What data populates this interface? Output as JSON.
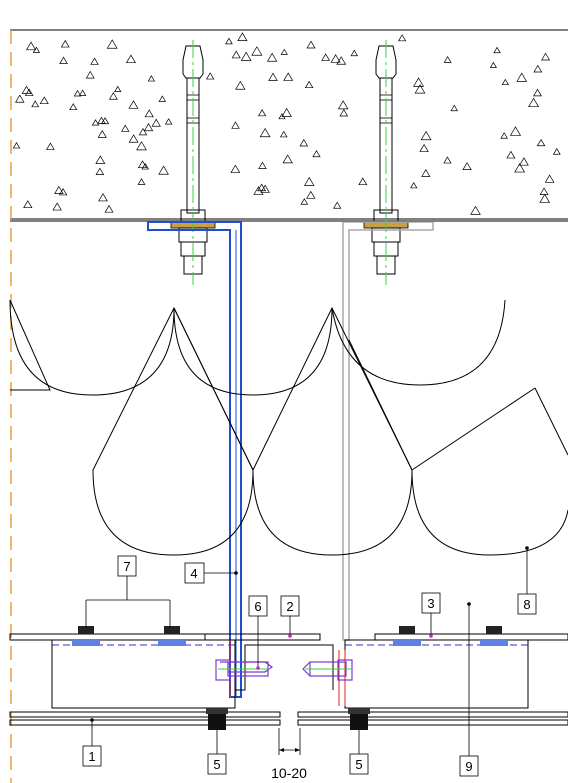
{
  "colors": {
    "line": "#000000",
    "blue_bracket": "#1f4fd0",
    "gray_bracket": "#a8a8a8",
    "center_line": "#39d039",
    "orange_axis": "#e8a040",
    "red_line": "#e02020",
    "magenta_marker": "#d020d0",
    "dashed_line": "#3030d0",
    "gold_washer": "#c8a040",
    "purple_clip": "#7a3ad0"
  },
  "callouts": {
    "c1": "1",
    "c2": "2",
    "c3": "3",
    "c4": "4",
    "c5a": "5",
    "c5b": "5",
    "c6": "6",
    "c7": "7",
    "c8": "8",
    "c9": "9"
  },
  "dimension": {
    "gap_label": "10-20"
  },
  "icons": {
    "anchor_bolt": "anchor-bolt-icon",
    "concrete_aggregate": "triangle-aggregate-icon"
  }
}
